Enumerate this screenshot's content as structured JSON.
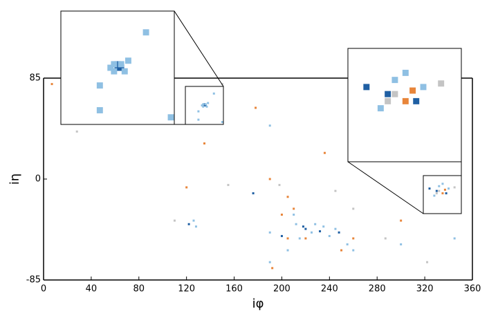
{
  "chart_data": {
    "type": "scatter",
    "xlabel": "iφ",
    "ylabel": "iη",
    "xlim": [
      0,
      360
    ],
    "ylim": [
      -85,
      85
    ],
    "xticks": [
      0,
      40,
      80,
      120,
      160,
      200,
      240,
      280,
      320,
      360
    ],
    "yticks": [
      -85,
      0,
      85
    ],
    "series": [
      {
        "color": "#1f5fa3",
        "x": [
          135,
          136,
          135,
          220,
          218,
          232,
          330,
          338,
          324,
          122,
          248,
          200,
          176
        ],
        "values": [
          62,
          62,
          63,
          -42,
          -40,
          -44,
          -10,
          -12,
          -8,
          -38,
          -45,
          -48,
          -12
        ]
      },
      {
        "color": "#8fc0e3",
        "x": [
          134,
          136,
          134,
          137,
          133,
          138,
          130,
          143,
          130,
          150,
          300,
          210,
          212,
          225,
          228,
          235,
          240,
          245,
          255,
          190,
          205,
          128,
          126,
          190,
          345,
          332,
          340,
          328,
          335,
          190,
          260,
          215
        ],
        "values": [
          61,
          63,
          63,
          61,
          62,
          64,
          57,
          72,
          50,
          48,
          -55,
          -30,
          -38,
          -45,
          -38,
          -40,
          -48,
          -42,
          -55,
          -45,
          -60,
          -40,
          -35,
          45,
          -50,
          -6,
          -8,
          -14,
          -4,
          -70,
          -60,
          -50
        ]
      },
      {
        "color": "#e8853a",
        "x": [
          7,
          120,
          190,
          205,
          210,
          200,
          220,
          250,
          260,
          335,
          337,
          205,
          135,
          236,
          192,
          300,
          178
        ],
        "values": [
          80,
          -7,
          0,
          -15,
          -25,
          -30,
          -50,
          -60,
          -50,
          -12,
          -9,
          -50,
          30,
          22,
          -75,
          -35,
          60
        ]
      },
      {
        "color": "#c4c4c4",
        "x": [
          330,
          332,
          345,
          287,
          245,
          28,
          110,
          155,
          198,
          260,
          322,
          150
        ],
        "values": [
          -12,
          -10,
          -7,
          -50,
          -10,
          40,
          -35,
          -5,
          -5,
          -25,
          -70,
          80
        ]
      }
    ]
  }
}
